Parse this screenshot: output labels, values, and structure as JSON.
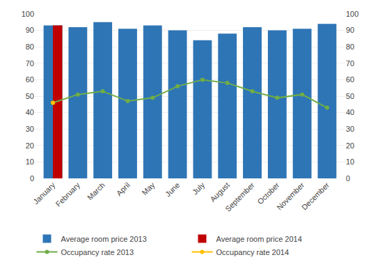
{
  "chart_data": {
    "type": "bar",
    "categories": [
      "January",
      "February",
      "March",
      "April",
      "May",
      "June",
      "July",
      "August",
      "September",
      "October",
      "November",
      "December"
    ],
    "series": [
      {
        "name": "Average room price 2013",
        "type": "bar",
        "color": "#2E75B6",
        "values": [
          93,
          92,
          95,
          91,
          93,
          90,
          84,
          88,
          92,
          90,
          91,
          94
        ]
      },
      {
        "name": "Average room price 2014",
        "type": "bar",
        "color": "#C00000",
        "values": [
          93,
          null,
          null,
          null,
          null,
          null,
          null,
          null,
          null,
          null,
          null,
          null
        ]
      },
      {
        "name": "Occupancy rate 2013",
        "type": "line",
        "color": "#70AD47",
        "marker": "circle",
        "axis": "y2",
        "values": [
          46,
          51,
          53,
          47,
          49,
          56,
          60,
          58,
          53,
          49,
          51,
          43
        ]
      },
      {
        "name": "Occupancy rate 2014",
        "type": "line",
        "color": "#FFC000",
        "marker": "circle",
        "axis": "y2",
        "values": [
          46,
          null,
          null,
          null,
          null,
          null,
          null,
          null,
          null,
          null,
          null,
          null
        ]
      }
    ],
    "ylim": [
      0,
      100
    ],
    "yticks": [
      0,
      10,
      20,
      30,
      40,
      50,
      60,
      70,
      80,
      90,
      100
    ],
    "y2lim": [
      0,
      100
    ],
    "y2ticks": [
      0,
      10,
      20,
      30,
      40,
      50,
      60,
      70,
      80,
      90,
      100
    ],
    "grid": true,
    "legend": "bottom"
  }
}
